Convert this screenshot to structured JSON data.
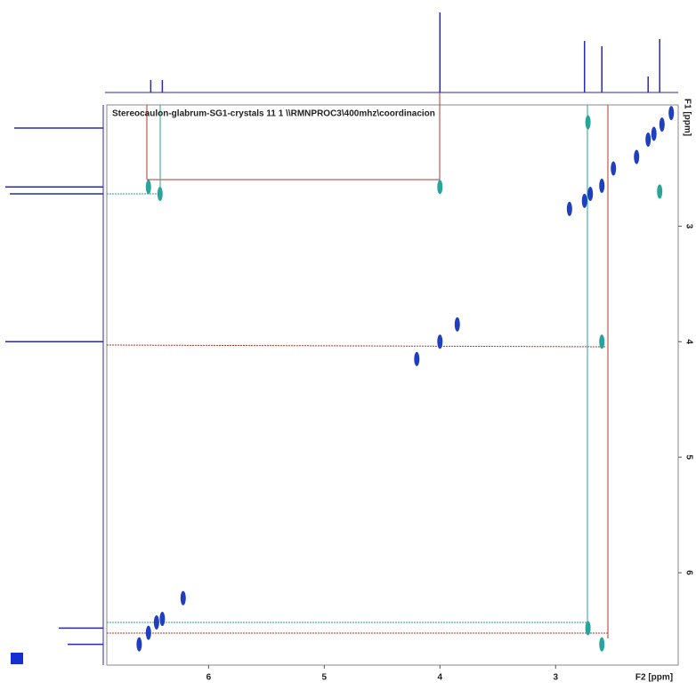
{
  "chart_data": {
    "type": "scatter",
    "title": "Stereocaulon-glabrum-SG1-crystals  11  1  \\\\RMNPROC3\\400mhz\\coordinacion",
    "x_label": "F2 [ppm]",
    "y_label": "F1 [ppm]",
    "xlim": [
      6.88,
      1.94
    ],
    "ylim": [
      1.95,
      6.8
    ],
    "xticks": [
      6,
      5,
      4,
      3
    ],
    "yticks": [
      3,
      4,
      5,
      6
    ],
    "series": [
      {
        "color": "#1f3fbf",
        "x": [
          6.6,
          6.52,
          6.45,
          6.4,
          6.22,
          4.0,
          3.85,
          4.2,
          2.88,
          2.75,
          2.7,
          2.6,
          2.5,
          2.3,
          2.2,
          2.15,
          2.08,
          2.0
        ],
        "values": [
          6.62,
          6.52,
          6.43,
          6.4,
          6.22,
          4.0,
          3.85,
          4.15,
          2.85,
          2.78,
          2.72,
          2.65,
          2.5,
          2.4,
          2.25,
          2.2,
          2.12,
          2.02
        ]
      },
      {
        "color": "#2aa39a",
        "x": [
          6.52,
          6.42,
          4.0,
          2.72,
          2.6,
          2.6,
          2.72,
          2.1
        ],
        "values": [
          2.66,
          2.72,
          2.66,
          6.48,
          6.62,
          4.0,
          2.1,
          2.7
        ]
      }
    ],
    "f2_projection": {
      "color": "#2a2aa8",
      "x": [
        6.5,
        6.4,
        4.0,
        2.75,
        2.6,
        2.2,
        2.1
      ],
      "values": [
        14,
        14,
        90,
        58,
        52,
        18,
        60
      ]
    },
    "f1_projection": {
      "color": "#2a2aa8",
      "y": [
        2.15,
        2.66,
        2.72,
        4.0,
        6.48,
        6.62
      ],
      "values": [
        100,
        110,
        105,
        110,
        50,
        40
      ]
    }
  }
}
